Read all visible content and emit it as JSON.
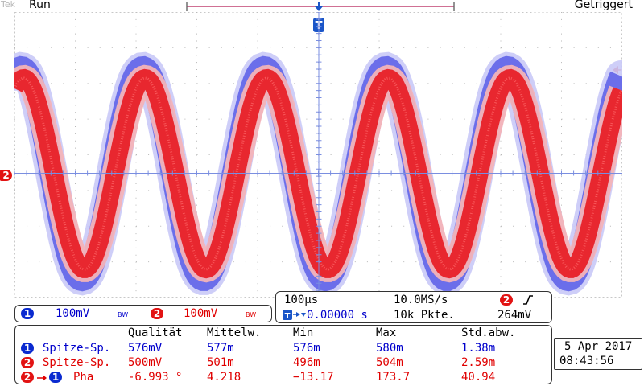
{
  "status": {
    "brand": "Tek",
    "run_state": "Run",
    "trigger_status": "Getriggert"
  },
  "channels": [
    {
      "number": "1",
      "scale": "100mV",
      "bandwidth": "BW",
      "color": "#0a2ad0"
    },
    {
      "number": "2",
      "scale": "100mV",
      "bandwidth": "BW",
      "color": "#e21313"
    }
  ],
  "trace": {
    "periods_on_screen": 5.0,
    "phase_deg_ch2_to_ch1": -6.993
  },
  "timebase": {
    "scale": "100µs",
    "sample_rate": "10.0MS/s",
    "trigger_position": "0.00000 s",
    "record_length": "10k Pkte.",
    "trigger_channel": "2",
    "trigger_slope_icon": "rising-edge-icon",
    "trigger_level": "264mV"
  },
  "measurements": {
    "headers": [
      "Qualität",
      "Mittelw.",
      "Min",
      "Max",
      "Std.abw."
    ],
    "rows": [
      {
        "source": "1",
        "source2": "",
        "name": "Spitze-Sp.",
        "color": "blue",
        "values": [
          "576mV",
          "577m",
          "576m",
          "580m",
          "1.38m"
        ]
      },
      {
        "source": "2",
        "source2": "",
        "name": "Spitze-Sp.",
        "color": "red",
        "values": [
          "500mV",
          "501m",
          "496m",
          "504m",
          "2.59m"
        ]
      },
      {
        "source": "2",
        "source2": "1",
        "name": "Pha",
        "color": "red",
        "values": [
          "-6.993 °",
          "4.218",
          "−13.17",
          "173.7",
          "40.94"
        ]
      }
    ]
  },
  "datetime": {
    "date": "5 Apr 2017",
    "time": "08:43:56"
  },
  "markers": {
    "ch2_ground_marker": "2",
    "trigger_marker": "T"
  }
}
